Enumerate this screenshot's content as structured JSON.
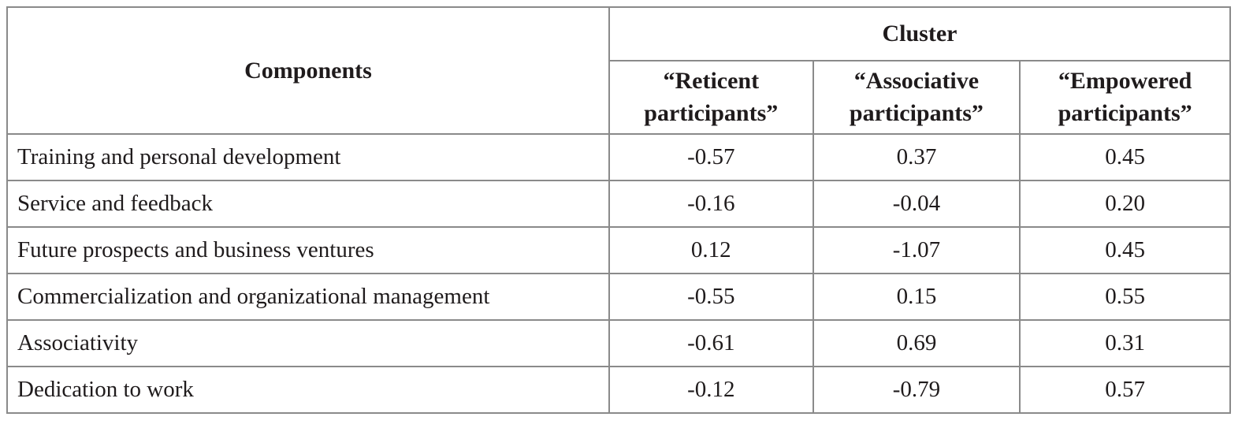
{
  "table": {
    "border_color": "#8a8a8a",
    "text_color": "#1f1b1c",
    "header": {
      "components_label": "Components",
      "cluster_label": "Cluster",
      "cluster_columns": [
        "“Reticent participants”",
        "“Associative participants”",
        "“Empowered participants”"
      ]
    },
    "rows": [
      {
        "label": "Training and personal development",
        "values": [
          "-0.57",
          "0.37",
          "0.45"
        ]
      },
      {
        "label": "Service and feedback",
        "values": [
          "-0.16",
          "-0.04",
          "0.20"
        ]
      },
      {
        "label": "Future prospects and business ventures",
        "values": [
          "0.12",
          "-1.07",
          "0.45"
        ]
      },
      {
        "label": "Commercialization and organizational management",
        "values": [
          "-0.55",
          "0.15",
          "0.55"
        ]
      },
      {
        "label": "Associativity",
        "values": [
          "-0.61",
          "0.69",
          "0.31"
        ]
      },
      {
        "label": "Dedication to work",
        "values": [
          "-0.12",
          "-0.79",
          "0.57"
        ]
      }
    ]
  },
  "chart_data": {
    "type": "table",
    "title": "",
    "columns": [
      "Components",
      "“Reticent participants”",
      "“Associative participants”",
      "“Empowered participants”"
    ],
    "rows": [
      [
        "Training and personal development",
        -0.57,
        0.37,
        0.45
      ],
      [
        "Service and feedback",
        -0.16,
        -0.04,
        0.2
      ],
      [
        "Future prospects and business ventures",
        0.12,
        -1.07,
        0.45
      ],
      [
        "Commercialization and organizational management",
        -0.55,
        0.15,
        0.55
      ],
      [
        "Associativity",
        -0.61,
        0.69,
        0.31
      ],
      [
        "Dedication to work",
        -0.12,
        -0.79,
        0.57
      ]
    ]
  }
}
